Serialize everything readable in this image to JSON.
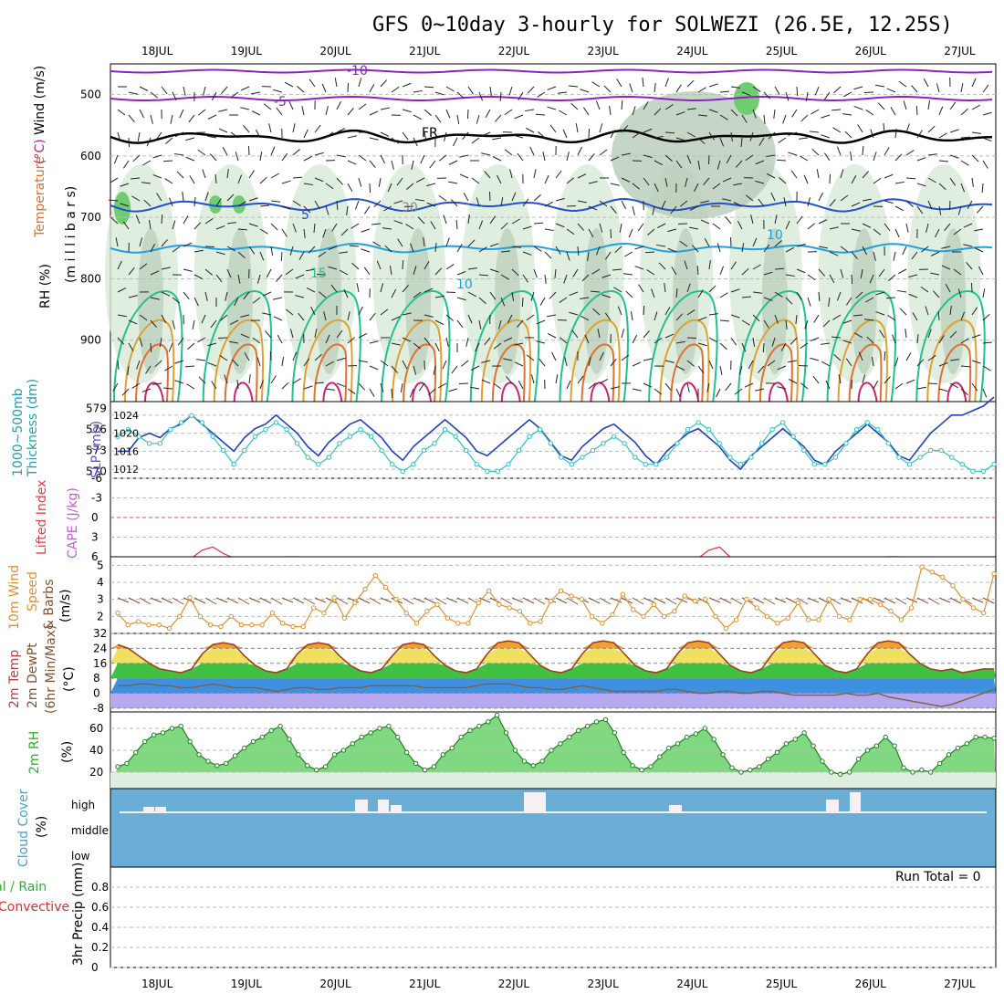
{
  "title": "GFS 0~10day 3-hourly for SOLWEZI (26.5E, 12.25S)",
  "dates": [
    "18JUL",
    "19JUL",
    "20JUL",
    "21JUL",
    "22JUL",
    "23JUL",
    "24JUL",
    "25JUL",
    "26JUL",
    "27JUL"
  ],
  "colors": {
    "contour_orange": "#e0a030",
    "contour_green": "#20c090",
    "contour_blue": "#2050d0",
    "contour_cyan": "#20a0e0",
    "contour_purple": "#9020c0",
    "rh_shade": "#9ac0a0",
    "slp": "#2040c0",
    "thickness": "#30c0c0",
    "cape": "#e03030",
    "wind10": "#e09030",
    "temp": "#e07030",
    "rh2m": "#30c030",
    "cloud": "#6aaed6"
  },
  "chart_data": [
    {
      "type": "heatmap",
      "name": "upper-air cross section",
      "ylabel_parts": [
        "RH (%)",
        "Temperature",
        "(°C)",
        "Wind (m/s)",
        "(m i l l i b a r s)"
      ],
      "y_ticks": [
        500,
        600,
        700,
        800,
        900
      ],
      "ylim": [
        1000,
        450
      ],
      "contour_labels": [
        "-10",
        "-5",
        "FR",
        "5",
        "10",
        "15",
        "10",
        "30"
      ]
    },
    {
      "type": "line",
      "name": "thickness and slp",
      "ylabel_left": [
        "1000~500mb",
        "Thickness (dm)"
      ],
      "ylabel_right": "SLP (mb)",
      "y_ticks_left": [
        579,
        576,
        573,
        570
      ],
      "y_ticks_right": [
        1024,
        1020,
        1016,
        1012
      ],
      "series": [
        {
          "name": "SLP",
          "values": [
            1016,
            1016,
            1019,
            1020,
            1019,
            1021,
            1022,
            1024,
            1022,
            1020,
            1018,
            1016,
            1019,
            1021,
            1022,
            1024,
            1022,
            1020,
            1017,
            1015,
            1018,
            1020,
            1022,
            1023,
            1021,
            1019,
            1016,
            1014,
            1017,
            1019,
            1021,
            1023,
            1021,
            1019,
            1016,
            1015,
            1017,
            1019,
            1021,
            1023,
            1021,
            1018,
            1015,
            1014,
            1017,
            1019,
            1021,
            1022,
            1020,
            1018,
            1015,
            1013,
            1016,
            1018,
            1020,
            1021,
            1019,
            1017,
            1014,
            1012,
            1015,
            1017,
            1019,
            1021,
            1019,
            1017,
            1014,
            1013,
            1016,
            1018,
            1020,
            1022,
            1020,
            1018,
            1015,
            1014,
            1017,
            1020,
            1022,
            1024,
            1024,
            1025,
            1026,
            1028
          ]
        },
        {
          "name": "Thickness",
          "values": [
            575,
            576,
            575,
            574,
            574,
            576,
            577,
            578,
            577,
            575,
            573,
            571,
            573,
            575,
            576,
            577,
            576,
            574,
            572,
            571,
            572,
            574,
            575,
            576,
            575,
            573,
            571,
            570,
            571,
            573,
            574,
            576,
            575,
            573,
            571,
            570,
            570,
            571,
            573,
            575,
            576,
            574,
            572,
            571,
            572,
            573,
            574,
            575,
            574,
            572,
            571,
            571,
            572,
            574,
            576,
            577,
            576,
            574,
            572,
            571,
            572,
            574,
            576,
            577,
            575,
            573,
            571,
            571,
            572,
            574,
            576,
            577,
            576,
            574,
            572,
            571,
            572,
            573,
            573,
            572,
            571,
            570,
            570,
            571
          ]
        }
      ]
    },
    {
      "type": "line",
      "name": "lifted index and cape",
      "ylabel_parts": [
        "Lifted Index",
        "CAPE (J/kg)"
      ],
      "y_ticks": [
        "-6",
        "-3",
        "0",
        "3",
        "6"
      ],
      "ylim": [
        -6,
        6
      ],
      "series": [
        {
          "name": "Lifted Index",
          "values": [
            7,
            7,
            7,
            7,
            7,
            7,
            7,
            7,
            5,
            4.5,
            5.5,
            7,
            7,
            7,
            7,
            7,
            6,
            6,
            7,
            7,
            7,
            7,
            7,
            7,
            7,
            7,
            7,
            7,
            7,
            7,
            7,
            7,
            7,
            7,
            7,
            7,
            7,
            7,
            7,
            7,
            7,
            7,
            7,
            7,
            7,
            7,
            7,
            7,
            7,
            7,
            7,
            7,
            7,
            7,
            7,
            7,
            5,
            4.5,
            6,
            7,
            7,
            7,
            7,
            7,
            7,
            7,
            7,
            7,
            7,
            7,
            7,
            7,
            6.5,
            6,
            6,
            7,
            7,
            7,
            7,
            7,
            7,
            7,
            7,
            7
          ]
        }
      ]
    },
    {
      "type": "line",
      "name": "10m wind",
      "ylabel_parts": [
        "10m Wind",
        "Speed",
        "(m/s)",
        "& Barbs"
      ],
      "y_ticks": [
        "2",
        "3",
        "4",
        "5"
      ],
      "ylim": [
        1,
        5.5
      ],
      "series": [
        {
          "name": "Wind speed",
          "values": [
            2.2,
            1.5,
            1.7,
            1.5,
            1.5,
            1.3,
            2.0,
            3.1,
            2.0,
            1.5,
            1.4,
            2.0,
            1.5,
            1.5,
            1.5,
            2.2,
            1.6,
            1.4,
            1.4,
            2.5,
            2.2,
            3.1,
            1.9,
            2.8,
            3.6,
            4.4,
            3.7,
            3.0,
            2.2,
            1.6,
            2.3,
            2.7,
            1.9,
            1.6,
            1.6,
            2.8,
            3.5,
            2.7,
            2.5,
            2.3,
            1.6,
            1.7,
            2.9,
            3.5,
            3.2,
            3.0,
            2.0,
            1.6,
            2.1,
            3.3,
            2.4,
            2.0,
            2.7,
            2.0,
            2.3,
            3.2,
            2.9,
            3.0,
            2.0,
            1.3,
            1.8,
            3.0,
            2.5,
            2.0,
            1.6,
            1.9,
            2.8,
            1.8,
            1.8,
            3.0,
            2.0,
            1.8,
            3.0,
            3.0,
            2.7,
            2.3,
            1.8,
            2.5,
            4.9,
            4.6,
            4.3,
            3.8,
            3.0,
            2.5,
            2.2,
            4.5
          ]
        }
      ]
    },
    {
      "type": "area",
      "name": "2m temperature",
      "ylabel_parts": [
        "2m Temp",
        "2m DewPt",
        "(6hr Min/Max)",
        "(°C)"
      ],
      "y_ticks": [
        "32",
        "24",
        "16",
        "8",
        "0",
        "-8"
      ],
      "ylim": [
        -10,
        32
      ],
      "series": [
        {
          "name": "2m Temp",
          "values": [
            26,
            24,
            20,
            16,
            13,
            12,
            11,
            13,
            21,
            26,
            27,
            26,
            20,
            15,
            12,
            11,
            13,
            21,
            26,
            27,
            26,
            20,
            15,
            12,
            11,
            13,
            20,
            26,
            27,
            26,
            20,
            15,
            12,
            11,
            13,
            21,
            27,
            28,
            27,
            21,
            15,
            12,
            11,
            13,
            21,
            27,
            28,
            27,
            21,
            15,
            12,
            11,
            13,
            21,
            27,
            28,
            27,
            21,
            15,
            12,
            11,
            13,
            21,
            27,
            28,
            27,
            21,
            15,
            12,
            11,
            13,
            21,
            27,
            28,
            27,
            21,
            16,
            13,
            12,
            13,
            11,
            12,
            13,
            13
          ]
        },
        {
          "name": "2m DewPt",
          "values": [
            4,
            4,
            5,
            5,
            4,
            4,
            3,
            3,
            4,
            5,
            4,
            3,
            3,
            3,
            2,
            1,
            2,
            3,
            3,
            2,
            2,
            3,
            3,
            3,
            4,
            4,
            4,
            4,
            4,
            3,
            3,
            3,
            3,
            3,
            4,
            5,
            5,
            5,
            4,
            3,
            3,
            2,
            2,
            3,
            4,
            3,
            2,
            1,
            1,
            1,
            1,
            1,
            2,
            2,
            1,
            0,
            0,
            1,
            1,
            0,
            0,
            1,
            1,
            0,
            -1,
            -1,
            -1,
            -1,
            -1,
            0,
            -1,
            -1,
            0,
            -2,
            -3,
            -4,
            -5,
            -6,
            -7,
            -6,
            -4,
            -2,
            0,
            2
          ]
        }
      ]
    },
    {
      "type": "area",
      "name": "2m relative humidity",
      "ylabel_parts": [
        "2m RH",
        "(%)"
      ],
      "y_ticks": [
        "20",
        "40",
        "60"
      ],
      "ylim": [
        5,
        75
      ],
      "series": [
        {
          "name": "2m RH",
          "values": [
            25,
            28,
            38,
            48,
            54,
            56,
            60,
            62,
            48,
            36,
            30,
            26,
            28,
            35,
            42,
            48,
            52,
            58,
            62,
            50,
            36,
            26,
            22,
            25,
            36,
            40,
            46,
            52,
            56,
            60,
            62,
            52,
            38,
            28,
            22,
            25,
            36,
            42,
            52,
            58,
            62,
            66,
            72,
            56,
            40,
            30,
            26,
            30,
            40,
            46,
            52,
            58,
            62,
            66,
            68,
            56,
            38,
            26,
            22,
            25,
            34,
            42,
            46,
            52,
            55,
            60,
            50,
            36,
            24,
            20,
            22,
            25,
            32,
            38,
            46,
            50,
            56,
            44,
            30,
            20,
            18,
            20,
            32,
            40,
            44,
            52,
            44,
            24,
            20,
            22,
            20,
            28,
            36,
            42,
            46,
            52,
            52,
            51
          ]
        }
      ]
    },
    {
      "type": "bar",
      "name": "cloud cover",
      "ylabel_parts": [
        "Cloud Cover",
        "(%)"
      ],
      "y_ticks": [
        "high",
        "middle",
        "low"
      ]
    },
    {
      "type": "bar",
      "name": "precipitation",
      "ylabel_parts": [
        "Total / Rain",
        "Convective",
        "3hr Precip (mm)"
      ],
      "y_ticks": [
        "0",
        "0.2",
        "0.4",
        "0.6",
        "0.8"
      ],
      "ylim": [
        0,
        1
      ],
      "run_total": "Run Total = 0",
      "values": []
    }
  ]
}
